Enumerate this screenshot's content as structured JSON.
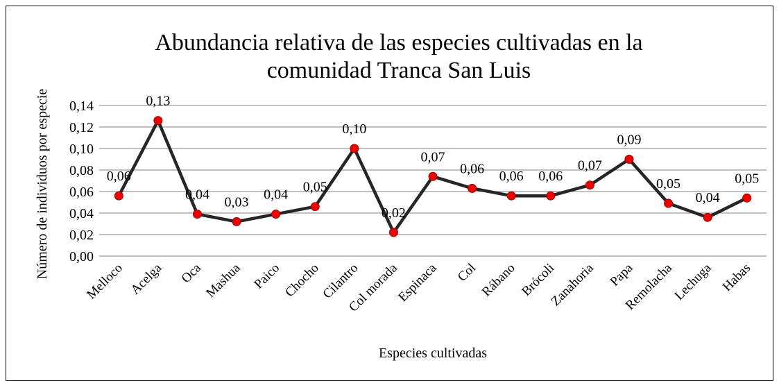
{
  "chart_data": {
    "type": "line",
    "title": [
      "Abundancia relativa de las especies cultivadas en la",
      "comunidad Tranca San Luis"
    ],
    "x_label": "Especies cultivadas",
    "y_label": "Número de individuos por especie",
    "categories": [
      "Melloco",
      "Acelga",
      "Oca",
      "Mashua",
      "Paico",
      "Chocho",
      "Cilantro",
      "Col morada",
      "Espinaca",
      "Col",
      "Rábano",
      "Brócoli",
      "Zanahoria",
      "Papa",
      "Remolacha",
      "Lechuga",
      "Habas"
    ],
    "series": [
      {
        "color": "#262626",
        "marker_color": "#ee0000",
        "values": [
          0.056,
          0.126,
          0.039,
          0.032,
          0.039,
          0.046,
          0.1,
          0.022,
          0.074,
          0.063,
          0.056,
          0.056,
          0.066,
          0.09,
          0.049,
          0.036,
          0.054
        ],
        "value_labels": [
          "0,06",
          "0,13",
          "0,04",
          "0,03",
          "0,04",
          "0,05",
          "0,10",
          "0,02",
          "0,07",
          "0,06",
          "0,06",
          "0,06",
          "0,07",
          "0,09",
          "0,05",
          "0,04",
          "0,05"
        ]
      }
    ],
    "ylim": [
      0,
      0.14
    ],
    "yticks": [
      {
        "value": 0,
        "label": "0,00"
      },
      {
        "value": 0.02,
        "label": "0,02"
      },
      {
        "value": 0.04,
        "label": "0,04"
      },
      {
        "value": 0.06,
        "label": "0,06"
      },
      {
        "value": 0.08,
        "label": "0,08"
      },
      {
        "value": 0.1,
        "label": "0,10"
      },
      {
        "value": 0.12,
        "label": "0,12"
      },
      {
        "value": 0.14,
        "label": "0,14"
      }
    ],
    "grid": true
  }
}
